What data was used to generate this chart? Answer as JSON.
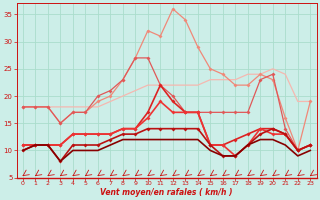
{
  "xlabel": "Vent moyen/en rafales ( km/h )",
  "bg_color": "#cceee8",
  "grid_color": "#aaddcc",
  "x_ticks": [
    0,
    1,
    2,
    3,
    4,
    5,
    6,
    7,
    8,
    9,
    10,
    11,
    12,
    13,
    14,
    15,
    16,
    17,
    18,
    19,
    20,
    21,
    22,
    23
  ],
  "ylim": [
    5,
    37
  ],
  "yticks": [
    5,
    10,
    15,
    20,
    25,
    30,
    35
  ],
  "lines": [
    {
      "y": [
        18,
        18,
        18,
        18,
        18,
        18,
        18,
        19,
        20,
        21,
        22,
        22,
        22,
        22,
        22,
        23,
        23,
        23,
        24,
        24,
        25,
        24,
        19,
        19
      ],
      "color": "#f5b8b0",
      "lw": 0.9,
      "marker": null
    },
    {
      "y": [
        18,
        18,
        18,
        15,
        17,
        17,
        19,
        20,
        23,
        27,
        32,
        31,
        36,
        34,
        29,
        25,
        24,
        22,
        22,
        24,
        23,
        16,
        10,
        19
      ],
      "color": "#f08878",
      "lw": 0.9,
      "marker": "D",
      "ms": 2.0
    },
    {
      "y": [
        18,
        18,
        18,
        15,
        17,
        17,
        20,
        21,
        23,
        27,
        27,
        22,
        20,
        17,
        17,
        17,
        17,
        17,
        17,
        23,
        24,
        14,
        10,
        11
      ],
      "color": "#e05858",
      "lw": 0.9,
      "marker": "D",
      "ms": 2.0
    },
    {
      "y": [
        11,
        11,
        11,
        11,
        13,
        13,
        13,
        13,
        14,
        14,
        17,
        22,
        19,
        17,
        17,
        11,
        11,
        12,
        13,
        14,
        14,
        13,
        10,
        11
      ],
      "color": "#dd2222",
      "lw": 1.2,
      "marker": "D",
      "ms": 2.0
    },
    {
      "y": [
        11,
        11,
        11,
        11,
        13,
        13,
        13,
        13,
        14,
        14,
        16,
        19,
        17,
        17,
        17,
        11,
        11,
        9,
        11,
        14,
        13,
        13,
        10,
        11
      ],
      "color": "#ee3333",
      "lw": 1.2,
      "marker": "D",
      "ms": 2.0
    },
    {
      "y": [
        10,
        11,
        11,
        8,
        11,
        11,
        11,
        12,
        13,
        13,
        14,
        14,
        14,
        14,
        14,
        11,
        9,
        9,
        11,
        13,
        14,
        13,
        10,
        11
      ],
      "color": "#bb1111",
      "lw": 1.2,
      "marker": "D",
      "ms": 2.0
    },
    {
      "y": [
        10,
        11,
        11,
        8,
        10,
        10,
        10,
        11,
        12,
        12,
        12,
        12,
        12,
        12,
        12,
        10,
        9,
        9,
        11,
        12,
        12,
        11,
        9,
        10
      ],
      "color": "#880000",
      "lw": 1.2,
      "marker": null
    }
  ],
  "arrow_color": "#cc1111",
  "tick_color": "#cc1111",
  "spine_color": "#cc1111"
}
